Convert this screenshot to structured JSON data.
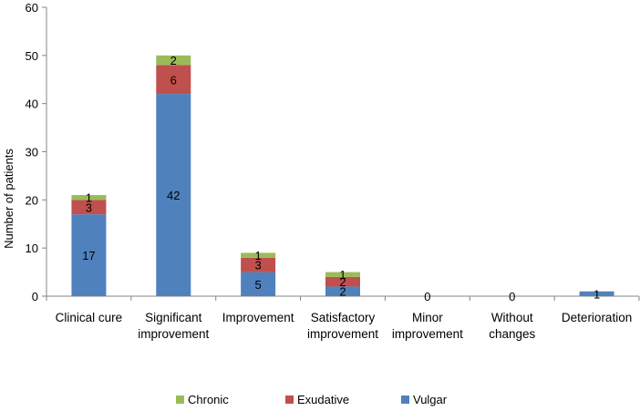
{
  "chart_data": {
    "type": "bar",
    "stacked": true,
    "title": "",
    "xlabel": "",
    "ylabel": "Number of patients",
    "ylim": [
      0,
      60
    ],
    "yticks": [
      0,
      10,
      20,
      30,
      40,
      50,
      60
    ],
    "categories": [
      [
        "Clinical cure"
      ],
      [
        "Significant",
        "improvement"
      ],
      [
        "Improvement"
      ],
      [
        "Satisfactory",
        "improvement"
      ],
      [
        "Minor",
        "improvement"
      ],
      [
        "Without",
        "changes"
      ],
      [
        "Deterioration"
      ]
    ],
    "series": [
      {
        "name": "Vulgar",
        "color": "#4F81BD",
        "values": [
          17,
          42,
          5,
          2,
          0,
          0,
          1
        ]
      },
      {
        "name": "Exudative",
        "color": "#C0504D",
        "values": [
          3,
          6,
          3,
          2,
          0,
          0,
          0
        ]
      },
      {
        "name": "Chronic",
        "color": "#9BBB59",
        "values": [
          1,
          2,
          1,
          1,
          0,
          0,
          0
        ]
      }
    ],
    "data_labels": [
      [
        "17",
        "3",
        "1"
      ],
      [
        "42",
        "6",
        "2"
      ],
      [
        "5",
        "3",
        "1"
      ],
      [
        "2",
        "2",
        "1"
      ],
      [
        "0",
        "",
        ""
      ],
      [
        "0",
        "",
        ""
      ],
      [
        "1",
        "",
        ""
      ]
    ],
    "legend": {
      "position": "bottom",
      "order": [
        "Chronic",
        "Exudative",
        "Vulgar"
      ]
    },
    "grid": false
  }
}
